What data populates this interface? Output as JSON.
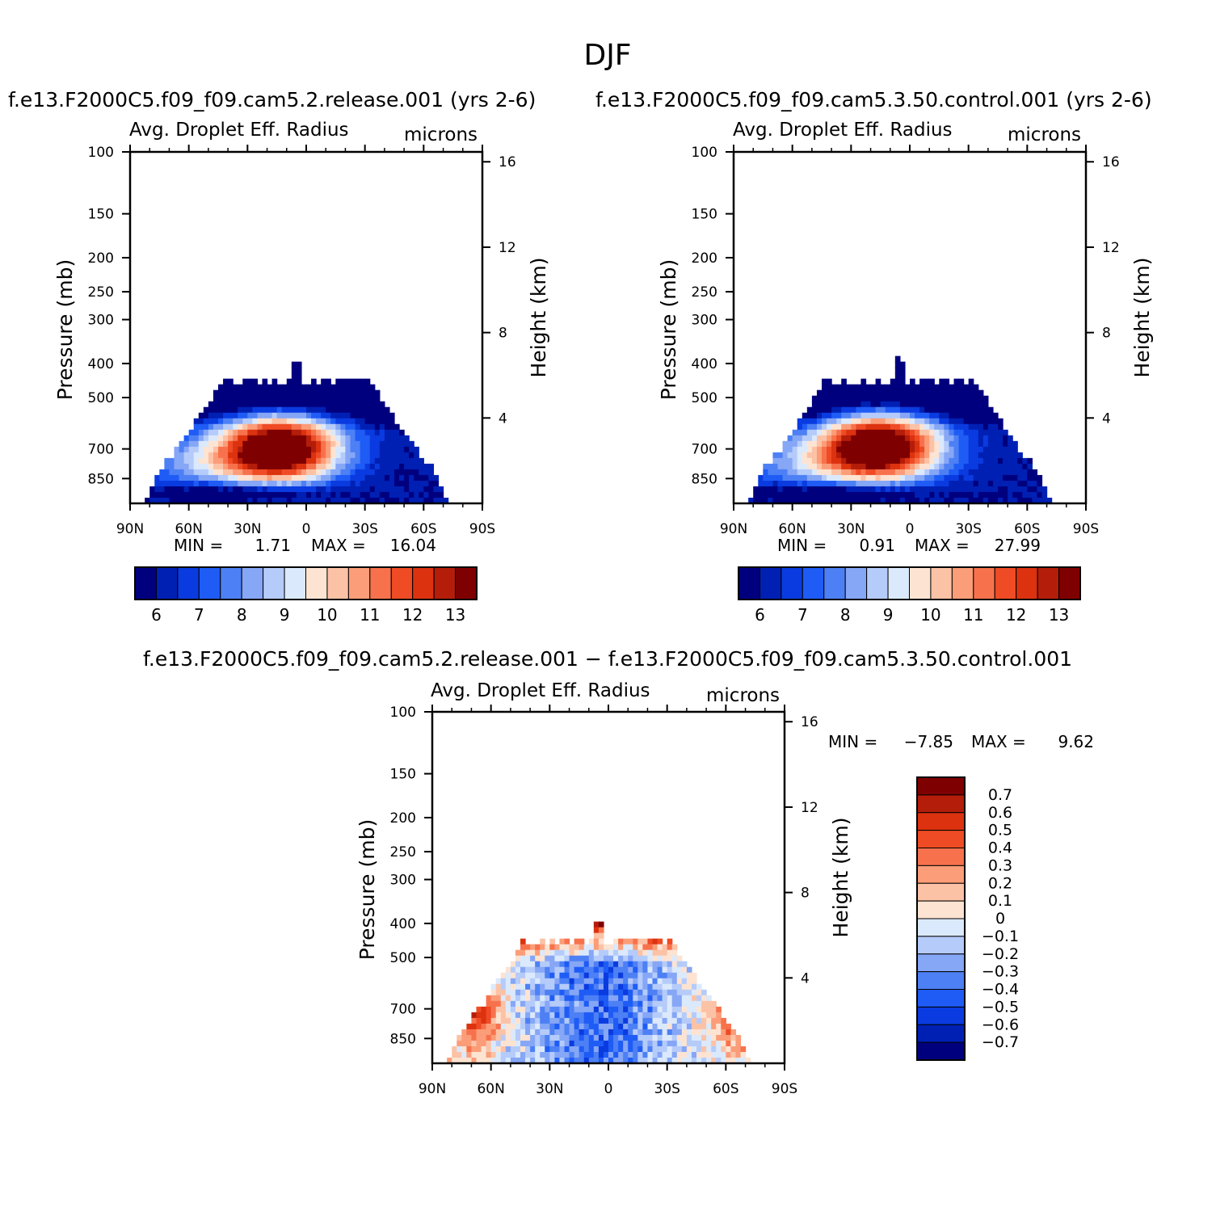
{
  "page_title": "DJF",
  "chart_data": [
    {
      "type": "heatmap",
      "id": "left",
      "case_title": "f.e13.F2000C5.f09_f09.cam5.2.release.001  (yrs  2-6)",
      "title": "Avg.  Droplet  Eff.  Radius",
      "units": "microns",
      "xlabel": "",
      "ylabel": "Pressure  (mb)",
      "y2label": "Height  (km)",
      "x_ticks": [
        "90N",
        "60N",
        "30N",
        "0",
        "30S",
        "60S",
        "90S"
      ],
      "y_ticks": [
        "100",
        "150",
        "200",
        "250",
        "300",
        "400",
        "500",
        "700",
        "850"
      ],
      "y2_ticks": [
        "16",
        "12",
        "8",
        "4"
      ],
      "min_label": "MIN  =",
      "min_value": "1.71",
      "max_label": "MAX  =",
      "max_value": "16.04",
      "colorbar_labels": [
        "6",
        "7",
        "8",
        "9",
        "10",
        "11",
        "12",
        "13"
      ],
      "field": {
        "core_lat": 13,
        "core_pressure": 690,
        "core_value": 16.04
      }
    },
    {
      "type": "heatmap",
      "id": "right",
      "case_title": "f.e13.F2000C5.f09_f09.cam5.3.50.control.001  (yrs  2-6)",
      "title": "Avg.  Droplet  Eff.  Radius",
      "units": "microns",
      "xlabel": "",
      "ylabel": "Pressure  (mb)",
      "y2label": "Height  (km)",
      "x_ticks": [
        "90N",
        "60N",
        "30N",
        "0",
        "30S",
        "60S",
        "90S"
      ],
      "y_ticks": [
        "100",
        "150",
        "200",
        "250",
        "300",
        "400",
        "500",
        "700",
        "850"
      ],
      "y2_ticks": [
        "16",
        "12",
        "8",
        "4"
      ],
      "min_label": "MIN  =",
      "min_value": "0.91",
      "max_label": "MAX  =",
      "max_value": "27.99",
      "colorbar_labels": [
        "6",
        "7",
        "8",
        "9",
        "10",
        "11",
        "12",
        "13"
      ],
      "field": {
        "core_lat": 15,
        "core_pressure": 680,
        "core_value": 27.99
      }
    },
    {
      "type": "heatmap",
      "id": "diff",
      "case_title": "f.e13.F2000C5.f09_f09.cam5.2.release.001  −  f.e13.F2000C5.f09_f09.cam5.3.50.control.001",
      "title": "Avg.  Droplet  Eff.  Radius",
      "units": "microns",
      "xlabel": "",
      "ylabel": "Pressure  (mb)",
      "y2label": "Height  (km)",
      "x_ticks": [
        "90N",
        "60N",
        "30N",
        "0",
        "30S",
        "60S",
        "90S"
      ],
      "y_ticks": [
        "100",
        "150",
        "200",
        "250",
        "300",
        "400",
        "500",
        "700",
        "850"
      ],
      "y2_ticks": [
        "16",
        "12",
        "8",
        "4"
      ],
      "min_label": "MIN  =",
      "min_value": "−7.85",
      "max_label": "MAX  =",
      "max_value": "9.62",
      "colorbar_labels": [
        "0.7",
        "0.6",
        "0.5",
        "0.4",
        "0.3",
        "0.2",
        "0.1",
        "0",
        "−0.1",
        "−0.2",
        "−0.3",
        "−0.4",
        "−0.5",
        "−0.6",
        "−0.7"
      ],
      "field": {
        "core_lat": 5,
        "core_pressure": 620,
        "core_value": -0.7
      }
    }
  ],
  "palette": [
    "#00007e",
    "#0020b4",
    "#0a3be0",
    "#1f5cf6",
    "#4d80f4",
    "#86a6f6",
    "#b5cbfa",
    "#dbe9fc",
    "#fde3d2",
    "#fcc2a6",
    "#fb9d78",
    "#f7724c",
    "#ef4b24",
    "#dc320f",
    "#b41d0a",
    "#7f0000"
  ]
}
